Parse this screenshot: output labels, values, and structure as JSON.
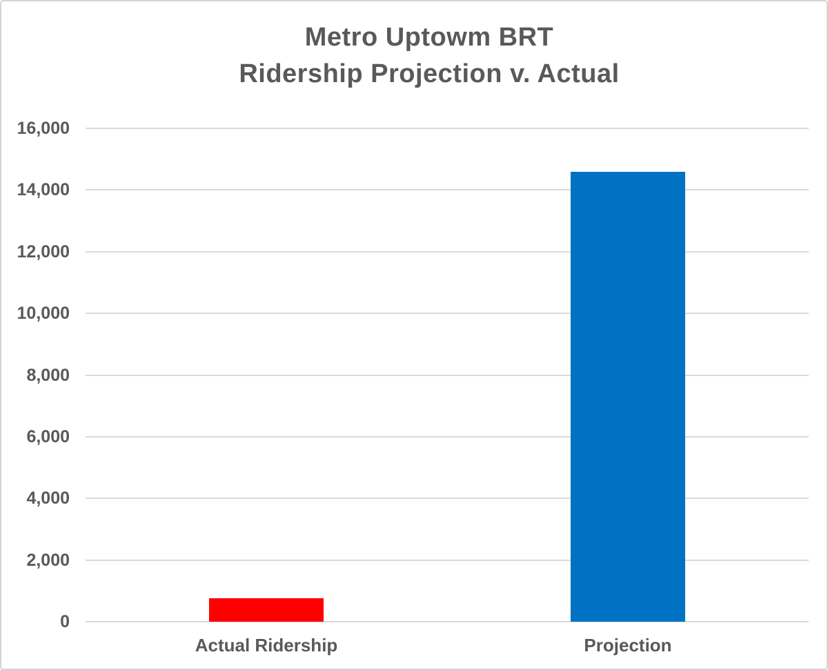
{
  "chart_data": {
    "type": "bar",
    "title": "Metro Uptowm BRT",
    "subtitle": "Ridership Projection v. Actual",
    "categories": [
      "Actual Ridership",
      "Projection"
    ],
    "values": [
      750,
      14600
    ],
    "bar_colors": [
      "#ff0000",
      "#0072c3"
    ],
    "xlabel": "",
    "ylabel": "",
    "ylim": [
      0,
      16000
    ],
    "ytick_interval": 2000,
    "yticks": [
      0,
      2000,
      4000,
      6000,
      8000,
      10000,
      12000,
      14000,
      16000
    ],
    "ytick_labels": [
      "0",
      "2,000",
      "4,000",
      "6,000",
      "8,000",
      "10,000",
      "12,000",
      "14,000",
      "16,000"
    ],
    "grid": true,
    "legend_position": "none"
  },
  "colors": {
    "title_text": "#595959",
    "axis_text": "#595959",
    "gridline": "#dadada",
    "background": "#ffffff",
    "frame_border": "#d3d3d3"
  }
}
